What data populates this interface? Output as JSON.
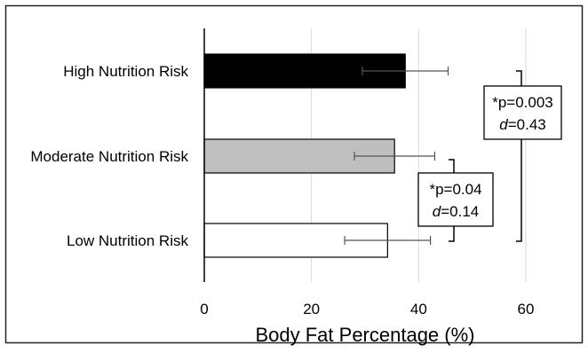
{
  "chart_data": {
    "type": "bar",
    "orientation": "horizontal",
    "title": "",
    "xlabel": "Body Fat Percentage (%)",
    "ylabel": "",
    "categories": [
      "High Nutrition Risk",
      "Moderate Nutrition Risk",
      "Low Nutrition Risk"
    ],
    "values": [
      37.5,
      35.5,
      34.2
    ],
    "errors": [
      8.0,
      7.5,
      8.0
    ],
    "bar_colors": [
      "#000000",
      "#bfbfbf",
      "#ffffff"
    ],
    "xlim": [
      0,
      60
    ],
    "xticks": [
      0,
      20,
      40,
      60
    ],
    "grid": true,
    "annotations": [
      {
        "name": "high-vs-low",
        "from": "High Nutrition Risk",
        "to": "Low Nutrition Risk",
        "p_text": "*p=0.003",
        "d_label": "d",
        "d_text": "=0.43"
      },
      {
        "name": "moderate-vs-low",
        "from": "Moderate Nutrition Risk",
        "to": "Low Nutrition Risk",
        "p_text": "*p=0.04",
        "d_label": "d",
        "d_text": "=0.14"
      }
    ]
  }
}
